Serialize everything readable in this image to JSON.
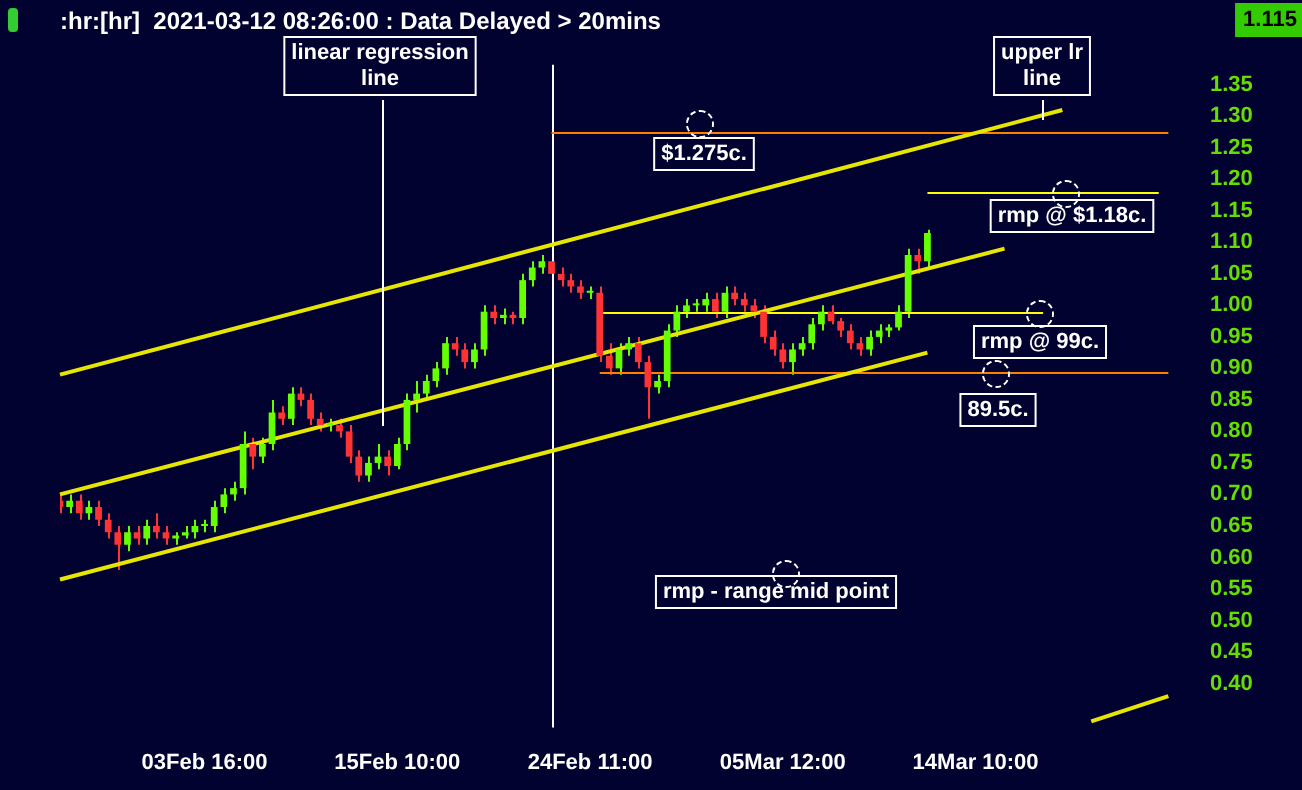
{
  "chart_data": {
    "type": "candlestick",
    "title": ":hr:[hr]  2021-03-12 08:26:00 : Data Delayed > 20mins",
    "categories": [
      null,
      null,
      null,
      null,
      null,
      null,
      null,
      null,
      null,
      null,
      null,
      null,
      null,
      null,
      null,
      "03Feb 16:00",
      null,
      null,
      null,
      null,
      null,
      null,
      null,
      null,
      null,
      null,
      null,
      null,
      null,
      null,
      null,
      null,
      null,
      null,
      null,
      "15Feb 10:00",
      null,
      null,
      null,
      null,
      null,
      null,
      null,
      null,
      null,
      null,
      null,
      null,
      null,
      null,
      null,
      null,
      null,
      null,
      null,
      "24Feb 11:00",
      null,
      null,
      null,
      null,
      null,
      null,
      null,
      null,
      null,
      null,
      null,
      null,
      null,
      null,
      null,
      null,
      null,
      null,
      null,
      "05Mar 12:00",
      null,
      null,
      null,
      null,
      null,
      null,
      null,
      null,
      null,
      null,
      null,
      null,
      null,
      null,
      null,
      null,
      null,
      null,
      null,
      "14Mar 10:00",
      null,
      null,
      null,
      null,
      null,
      null,
      null,
      null,
      null,
      null,
      null,
      null,
      null,
      null,
      null,
      null,
      null,
      null,
      null,
      null,
      null
    ],
    "ohlc": [
      [
        0.69,
        0.7,
        0.67,
        0.68
      ],
      [
        0.68,
        0.7,
        0.67,
        0.69
      ],
      [
        0.69,
        0.7,
        0.66,
        0.67
      ],
      [
        0.67,
        0.69,
        0.66,
        0.68
      ],
      [
        0.68,
        0.69,
        0.65,
        0.66
      ],
      [
        0.66,
        0.67,
        0.63,
        0.64
      ],
      [
        0.64,
        0.65,
        0.58,
        0.62
      ],
      [
        0.62,
        0.65,
        0.61,
        0.64
      ],
      [
        0.64,
        0.65,
        0.62,
        0.63
      ],
      [
        0.63,
        0.66,
        0.62,
        0.65
      ],
      [
        0.65,
        0.67,
        0.63,
        0.64
      ],
      [
        0.64,
        0.65,
        0.62,
        0.63
      ],
      [
        0.63,
        0.64,
        0.62,
        0.635
      ],
      [
        0.635,
        0.65,
        0.63,
        0.64
      ],
      [
        0.64,
        0.66,
        0.63,
        0.65
      ],
      [
        0.65,
        0.66,
        0.64,
        0.65
      ],
      [
        0.65,
        0.69,
        0.64,
        0.68
      ],
      [
        0.68,
        0.71,
        0.67,
        0.7
      ],
      [
        0.7,
        0.72,
        0.69,
        0.71
      ],
      [
        0.71,
        0.8,
        0.7,
        0.78
      ],
      [
        0.78,
        0.79,
        0.74,
        0.76
      ],
      [
        0.76,
        0.79,
        0.75,
        0.78
      ],
      [
        0.78,
        0.85,
        0.77,
        0.83
      ],
      [
        0.83,
        0.84,
        0.81,
        0.82
      ],
      [
        0.82,
        0.87,
        0.81,
        0.86
      ],
      [
        0.86,
        0.87,
        0.84,
        0.85
      ],
      [
        0.85,
        0.86,
        0.81,
        0.82
      ],
      [
        0.82,
        0.83,
        0.8,
        0.81
      ],
      [
        0.81,
        0.82,
        0.8,
        0.81
      ],
      [
        0.81,
        0.82,
        0.79,
        0.8
      ],
      [
        0.8,
        0.81,
        0.75,
        0.76
      ],
      [
        0.76,
        0.77,
        0.72,
        0.73
      ],
      [
        0.73,
        0.76,
        0.72,
        0.75
      ],
      [
        0.75,
        0.78,
        0.74,
        0.76
      ],
      [
        0.76,
        0.77,
        0.73,
        0.745
      ],
      [
        0.745,
        0.79,
        0.74,
        0.78
      ],
      [
        0.78,
        0.86,
        0.77,
        0.85
      ],
      [
        0.85,
        0.88,
        0.83,
        0.86
      ],
      [
        0.86,
        0.89,
        0.85,
        0.88
      ],
      [
        0.88,
        0.91,
        0.87,
        0.9
      ],
      [
        0.9,
        0.95,
        0.89,
        0.94
      ],
      [
        0.94,
        0.95,
        0.92,
        0.93
      ],
      [
        0.93,
        0.94,
        0.9,
        0.91
      ],
      [
        0.91,
        0.94,
        0.9,
        0.93
      ],
      [
        0.93,
        1.0,
        0.92,
        0.99
      ],
      [
        0.99,
        1.0,
        0.97,
        0.98
      ],
      [
        0.98,
        0.995,
        0.97,
        0.985
      ],
      [
        0.985,
        0.99,
        0.97,
        0.98
      ],
      [
        0.98,
        1.05,
        0.97,
        1.04
      ],
      [
        1.04,
        1.07,
        1.03,
        1.06
      ],
      [
        1.06,
        1.08,
        1.05,
        1.07
      ],
      [
        1.07,
        1.08,
        1.04,
        1.05
      ],
      [
        1.05,
        1.06,
        1.03,
        1.04
      ],
      [
        1.04,
        1.05,
        1.02,
        1.03
      ],
      [
        1.03,
        1.04,
        1.01,
        1.02
      ],
      [
        1.02,
        1.03,
        1.01,
        1.02
      ],
      [
        1.02,
        1.03,
        0.91,
        0.92
      ],
      [
        0.92,
        0.94,
        0.89,
        0.9
      ],
      [
        0.9,
        0.94,
        0.89,
        0.93
      ],
      [
        0.93,
        0.95,
        0.92,
        0.94
      ],
      [
        0.94,
        0.95,
        0.9,
        0.91
      ],
      [
        0.91,
        0.92,
        0.82,
        0.87
      ],
      [
        0.87,
        0.89,
        0.86,
        0.88
      ],
      [
        0.88,
        0.97,
        0.87,
        0.96
      ],
      [
        0.96,
        1.0,
        0.95,
        0.99
      ],
      [
        0.99,
        1.01,
        0.98,
        1.0
      ],
      [
        1.0,
        1.01,
        0.99,
        1.0
      ],
      [
        1.0,
        1.02,
        0.99,
        1.01
      ],
      [
        1.01,
        1.02,
        0.98,
        0.99
      ],
      [
        0.99,
        1.03,
        0.98,
        1.02
      ],
      [
        1.02,
        1.03,
        1.0,
        1.01
      ],
      [
        1.01,
        1.02,
        0.99,
        1.0
      ],
      [
        1.0,
        1.01,
        0.98,
        0.99
      ],
      [
        0.99,
        1.0,
        0.94,
        0.95
      ],
      [
        0.95,
        0.96,
        0.92,
        0.93
      ],
      [
        0.93,
        0.94,
        0.9,
        0.91
      ],
      [
        0.91,
        0.94,
        0.89,
        0.93
      ],
      [
        0.93,
        0.95,
        0.92,
        0.94
      ],
      [
        0.94,
        0.98,
        0.93,
        0.97
      ],
      [
        0.97,
        1.0,
        0.96,
        0.99
      ],
      [
        0.99,
        1.0,
        0.97,
        0.975
      ],
      [
        0.975,
        0.98,
        0.95,
        0.96
      ],
      [
        0.96,
        0.97,
        0.93,
        0.94
      ],
      [
        0.94,
        0.95,
        0.92,
        0.93
      ],
      [
        0.93,
        0.96,
        0.92,
        0.95
      ],
      [
        0.95,
        0.97,
        0.94,
        0.96
      ],
      [
        0.96,
        0.97,
        0.95,
        0.965
      ],
      [
        0.965,
        1.0,
        0.96,
        0.99
      ],
      [
        0.99,
        1.09,
        0.98,
        1.08
      ],
      [
        1.08,
        1.09,
        1.05,
        1.07
      ],
      [
        1.07,
        1.12,
        1.06,
        1.115
      ],
      null,
      null,
      null,
      null,
      null,
      null,
      null,
      null,
      null,
      null,
      null,
      null,
      null,
      null,
      null,
      null,
      null,
      null,
      null,
      null,
      null,
      null,
      null,
      null,
      null,
      null
    ],
    "colors": [
      "#ff3333",
      "#66ff00",
      "#ff3333",
      "#66ff00",
      "#ff3333",
      "#ff3333",
      "#ff3333",
      "#66ff00",
      "#ff3333",
      "#66ff00",
      "#ff3333",
      "#ff3333",
      "#66ff00",
      "#66ff00",
      "#66ff00",
      "#66ff00",
      "#66ff00",
      "#66ff00",
      "#66ff00",
      "#66ff00",
      "#ff3333",
      "#66ff00",
      "#66ff00",
      "#ff3333",
      "#66ff00",
      "#ff3333",
      "#ff3333",
      "#ff3333",
      "#66ff00",
      "#ff3333",
      "#ff3333",
      "#ff3333",
      "#66ff00",
      "#66ff00",
      "#ff3333",
      "#66ff00",
      "#66ff00",
      "#66ff00",
      "#66ff00",
      "#66ff00",
      "#66ff00",
      "#ff3333",
      "#ff3333",
      "#66ff00",
      "#66ff00",
      "#ff3333",
      "#66ff00",
      "#ff3333",
      "#66ff00",
      "#66ff00",
      "#66ff00",
      "#ff3333",
      "#ff3333",
      "#ff3333",
      "#ff3333",
      "#66ff00",
      "#ff3333",
      "#ff3333",
      "#66ff00",
      "#66ff00",
      "#ff3333",
      "#ff3333",
      "#66ff00",
      "#66ff00",
      "#66ff00",
      "#66ff00",
      "#66ff00",
      "#66ff00",
      "#ff3333",
      "#66ff00",
      "#ff3333",
      "#ff3333",
      "#ff3333",
      "#ff3333",
      "#ff3333",
      "#ff3333",
      "#66ff00",
      "#66ff00",
      "#66ff00",
      "#66ff00",
      "#ff3333",
      "#ff3333",
      "#ff3333",
      "#ff3333",
      "#66ff00",
      "#66ff00",
      "#66ff00",
      "#66ff00",
      "#66ff00",
      "#ff3333",
      "#66ff00",
      null,
      null,
      null,
      null,
      null,
      null,
      null,
      null,
      null,
      null,
      null,
      null,
      null,
      null,
      null,
      null,
      null,
      null,
      null,
      null,
      null,
      null,
      null,
      null,
      null,
      null
    ],
    "series": [
      {
        "type": "line",
        "values": [
          0.7,
          null,
          null,
          null,
          null,
          null,
          null,
          null,
          null,
          null,
          null,
          null,
          null,
          null,
          null,
          null,
          null,
          null,
          null,
          null,
          null,
          null,
          null,
          null,
          null,
          null,
          null,
          null,
          null,
          null,
          null,
          null,
          null,
          null,
          null,
          null,
          null,
          null,
          null,
          null,
          null,
          null,
          null,
          null,
          null,
          null,
          null,
          null,
          null,
          null,
          null,
          null,
          null,
          null,
          null,
          null,
          null,
          null,
          null,
          null,
          null,
          null,
          null,
          null,
          null,
          null,
          null,
          null,
          null,
          null,
          null,
          null,
          null,
          null,
          null,
          null,
          null,
          null,
          null,
          null,
          null,
          null,
          null,
          null,
          null,
          null,
          null,
          null,
          null,
          null,
          null,
          null,
          null,
          null,
          null,
          null,
          null,
          null,
          1.09,
          null,
          null,
          null,
          null,
          null,
          null,
          null,
          null,
          null,
          null,
          null,
          null,
          null,
          null,
          null,
          null,
          null,
          null
        ],
        "color": "#e6e600"
      },
      {
        "type": "line",
        "values": [
          0.89,
          null,
          null,
          null,
          null,
          null,
          null,
          null,
          null,
          null,
          null,
          null,
          null,
          null,
          null,
          null,
          null,
          null,
          null,
          null,
          null,
          null,
          null,
          null,
          null,
          null,
          null,
          null,
          null,
          null,
          null,
          null,
          null,
          null,
          null,
          null,
          null,
          null,
          null,
          null,
          null,
          null,
          null,
          null,
          null,
          null,
          null,
          null,
          null,
          null,
          null,
          null,
          null,
          null,
          null,
          null,
          null,
          null,
          null,
          null,
          null,
          null,
          null,
          null,
          null,
          null,
          null,
          null,
          null,
          null,
          null,
          null,
          null,
          null,
          null,
          null,
          null,
          null,
          null,
          null,
          null,
          null,
          null,
          null,
          null,
          null,
          null,
          null,
          null,
          null,
          null,
          null,
          null,
          null,
          null,
          null,
          null,
          null,
          null,
          null,
          null,
          null,
          null,
          null,
          1.31,
          null,
          null,
          null,
          null,
          null,
          null,
          null,
          null,
          null,
          null,
          null,
          null
        ],
        "color": "#e6e600"
      },
      {
        "type": "line",
        "values": [
          0.565,
          null,
          null,
          null,
          null,
          null,
          null,
          null,
          null,
          null,
          null,
          null,
          null,
          null,
          null,
          null,
          null,
          null,
          null,
          null,
          null,
          null,
          null,
          null,
          null,
          null,
          null,
          null,
          null,
          null,
          null,
          null,
          null,
          null,
          null,
          null,
          null,
          null,
          null,
          null,
          null,
          null,
          null,
          null,
          null,
          null,
          null,
          null,
          null,
          null,
          null,
          null,
          null,
          null,
          null,
          null,
          null,
          null,
          null,
          null,
          null,
          null,
          null,
          null,
          null,
          null,
          null,
          null,
          null,
          null,
          null,
          null,
          null,
          null,
          null,
          null,
          null,
          null,
          null,
          null,
          null,
          null,
          null,
          null,
          null,
          null,
          null,
          null,
          null,
          null,
          0.925,
          null,
          null,
          null,
          null,
          null,
          null,
          null,
          null,
          null,
          null,
          null,
          null,
          null,
          null,
          null,
          null,
          null,
          null,
          null,
          null,
          null,
          null,
          null,
          null,
          null,
          null
        ],
        "color": "#e6e600"
      },
      {
        "type": "line",
        "values": [
          null,
          null,
          null,
          null,
          null,
          null,
          null,
          null,
          null,
          null,
          null,
          null,
          null,
          null,
          null,
          null,
          null,
          null,
          null,
          null,
          null,
          null,
          null,
          null,
          null,
          null,
          null,
          null,
          null,
          null,
          null,
          null,
          null,
          null,
          null,
          null,
          null,
          null,
          null,
          null,
          null,
          null,
          null,
          null,
          null,
          null,
          null,
          null,
          null,
          null,
          null,
          null,
          null,
          null,
          null,
          null,
          null,
          null,
          null,
          null,
          null,
          null,
          null,
          null,
          null,
          null,
          null,
          null,
          null,
          null,
          null,
          null,
          null,
          null,
          null,
          null,
          null,
          null,
          null,
          null,
          null,
          null,
          null,
          null,
          null,
          null,
          null,
          null,
          null,
          null,
          null,
          null,
          null,
          null,
          null,
          null,
          null,
          null,
          null,
          null,
          null,
          null,
          null,
          null,
          null,
          null,
          null,
          0.34,
          null,
          null,
          null,
          null,
          null,
          null,
          null,
          0.38,
          null
        ],
        "color": "#e6e600"
      }
    ],
    "ylim": [
      0.33,
      1.35
    ],
    "yticks": [
      {
        "value": 0.4,
        "label": "0.40"
      },
      0.45,
      {
        "value": 0.5,
        "label": "0.50"
      },
      0.55,
      {
        "value": 0.6,
        "label": "0.60"
      },
      0.65,
      {
        "value": 0.7,
        "label": "0.70"
      },
      0.75,
      {
        "value": 0.8,
        "label": "0.80"
      },
      0.85,
      {
        "value": 0.9,
        "label": "0.90"
      },
      0.95,
      {
        "value": 1.0,
        "label": "1.00"
      },
      1.05,
      {
        "value": 1.1,
        "label": "1.10"
      },
      1.15,
      {
        "value": 1.2,
        "label": "1.20"
      },
      1.25,
      {
        "value": 1.3,
        "label": "1.30"
      },
      1.35
    ],
    "ref_lines": [
      {
        "axis": "y",
        "value": 1.275,
        "label": "$1.275c.",
        "color": "#ff8000"
      },
      {
        "axis": "y",
        "value": 1.18,
        "label": "rmp @ $1.18c.",
        "color": "#ffff00"
      },
      {
        "axis": "y",
        "value": 0.99,
        "label": "rmp @ 99c.",
        "color": "#ffff00"
      },
      {
        "axis": "y",
        "value": 0.895,
        "label": "89.5c.",
        "color": "#ff8000"
      }
    ],
    "annotations": [
      "linear regression line",
      "upper lr line",
      "rmp - range mid point",
      "1.115"
    ]
  }
}
